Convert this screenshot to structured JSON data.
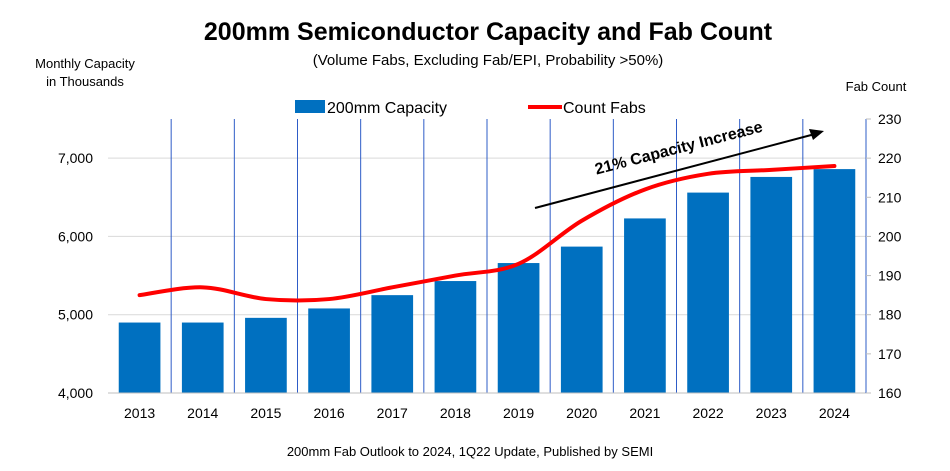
{
  "chart_data": {
    "type": "bar+line",
    "title": "200mm Semiconductor Capacity and Fab Count",
    "subtitle": "(Volume Fabs, Excluding Fab/EPI, Probability >50%)",
    "ylabel_left": [
      "Monthly Capacity",
      "in Thousands"
    ],
    "ylabel_right": "Fab Count",
    "categories": [
      "2013",
      "2014",
      "2015",
      "2016",
      "2017",
      "2018",
      "2019",
      "2020",
      "2021",
      "2022",
      "2023",
      "2024"
    ],
    "series": [
      {
        "name": "200mm Capacity",
        "type": "bar",
        "axis": "left",
        "color": "#0070C0",
        "values": [
          4900,
          4900,
          4960,
          5080,
          5250,
          5430,
          5660,
          5870,
          6230,
          6560,
          6760,
          6860
        ]
      },
      {
        "name": "Count Fabs",
        "type": "line",
        "axis": "right",
        "color": "#FF0000",
        "values": [
          185,
          187,
          184,
          184,
          187,
          190,
          193,
          204,
          212,
          216,
          217,
          218
        ]
      }
    ],
    "ylim_left": [
      4000,
      7500
    ],
    "yticks_left": [
      "4,000",
      "5,000",
      "6,000",
      "7,000"
    ],
    "ylim_right": [
      160,
      230
    ],
    "yticks_right": [
      "160",
      "170",
      "180",
      "190",
      "200",
      "210",
      "220",
      "230"
    ],
    "annotation": "21% Capacity Increase",
    "source": "200mm Fab Outlook to 2024, 1Q22 Update, Published by SEMI",
    "legend_position": "top",
    "grid": true
  }
}
